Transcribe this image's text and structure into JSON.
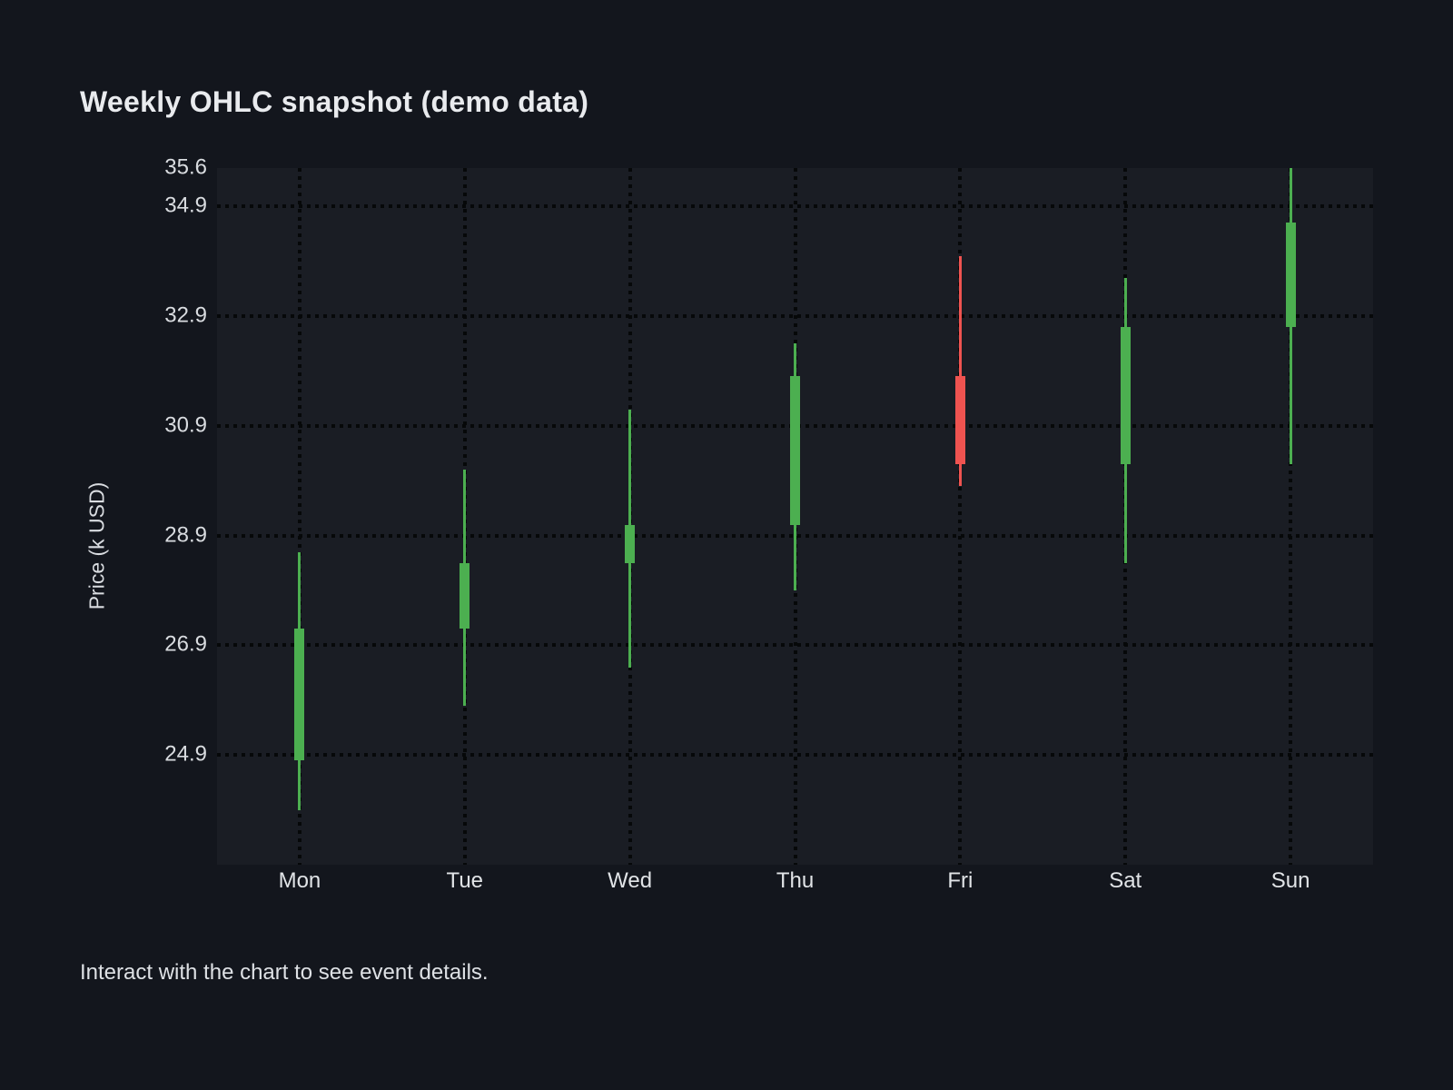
{
  "page": {
    "title": "Weekly OHLC snapshot (demo data)",
    "footer": "Interact with the chart to see event details."
  },
  "chart_data": {
    "type": "candlestick",
    "title": "Weekly OHLC snapshot (demo data)",
    "xlabel": "",
    "ylabel": "Price (k USD)",
    "categories": [
      "Mon",
      "Tue",
      "Wed",
      "Thu",
      "Fri",
      "Sat",
      "Sun"
    ],
    "series": [
      {
        "name": "OHLC",
        "points": [
          {
            "day": "Mon",
            "open": 24.8,
            "high": 28.6,
            "low": 23.9,
            "close": 27.2,
            "direction": "up"
          },
          {
            "day": "Tue",
            "open": 27.2,
            "high": 30.1,
            "low": 25.8,
            "close": 28.4,
            "direction": "up"
          },
          {
            "day": "Wed",
            "open": 28.4,
            "high": 31.2,
            "low": 26.5,
            "close": 29.1,
            "direction": "up"
          },
          {
            "day": "Thu",
            "open": 29.1,
            "high": 32.4,
            "low": 27.9,
            "close": 31.8,
            "direction": "up"
          },
          {
            "day": "Fri",
            "open": 31.8,
            "high": 34.0,
            "low": 29.8,
            "close": 30.2,
            "direction": "down"
          },
          {
            "day": "Sat",
            "open": 30.2,
            "high": 33.6,
            "low": 28.4,
            "close": 32.7,
            "direction": "up"
          },
          {
            "day": "Sun",
            "open": 32.7,
            "high": 35.6,
            "low": 30.2,
            "close": 34.6,
            "direction": "up"
          }
        ]
      }
    ],
    "ylim": [
      22.9,
      35.6
    ],
    "yticks": [
      {
        "value": 35.6,
        "label": "35.6",
        "gridline": false
      },
      {
        "value": 34.9,
        "label": "34.9",
        "gridline": true
      },
      {
        "value": 32.9,
        "label": "32.9",
        "gridline": true
      },
      {
        "value": 30.9,
        "label": "30.9",
        "gridline": true
      },
      {
        "value": 28.9,
        "label": "28.9",
        "gridline": true
      },
      {
        "value": 26.9,
        "label": "26.9",
        "gridline": true
      },
      {
        "value": 24.9,
        "label": "24.9",
        "gridline": true
      }
    ],
    "grid": "dotted",
    "legend": "none",
    "colors": {
      "up": "#4caf50",
      "down": "#ef5350",
      "background": "#13161d",
      "plot_background": "#1a1d24",
      "gridline": "#060809",
      "text": "#d9dce0"
    }
  }
}
